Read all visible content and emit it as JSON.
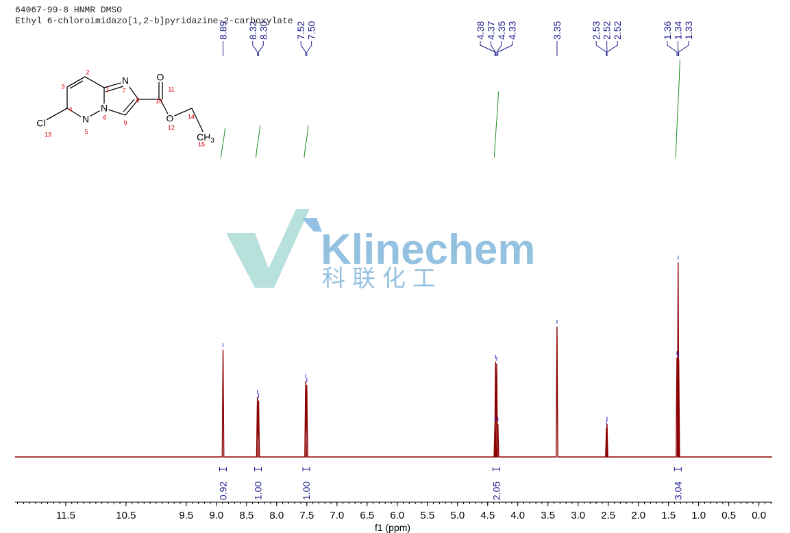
{
  "title_lines": [
    "64067-99-8 HNMR DMSO",
    "Ethyl 6-chloroimidazo[1,2-b]pyridazine-2-carboxylate"
  ],
  "watermark": {
    "brand": "Klinechem",
    "chinese": "科联化工"
  },
  "structure": {
    "symbols": [
      "N",
      "N",
      "N",
      "O",
      "O",
      "Cl"
    ],
    "methyl": {
      "text": "CH",
      "sub": "3"
    },
    "atom_numbers": [
      1,
      2,
      3,
      4,
      5,
      6,
      7,
      8,
      9,
      10,
      11,
      12,
      13,
      14,
      15
    ]
  },
  "chart_data": {
    "type": "spectrum",
    "x_label": "f1 (ppm)",
    "xlim": [
      12.34,
      -0.22
    ],
    "xticks": [
      11.5,
      10.5,
      9.5,
      {
        "value": 9,
        "label": "9.0"
      },
      8.5,
      {
        "value": 8,
        "label": "8.0"
      },
      7.5,
      {
        "value": 7,
        "label": "7.0"
      },
      6.5,
      {
        "value": 6,
        "label": "6.0"
      },
      5.5,
      {
        "value": 5,
        "label": "5.0"
      },
      4.5,
      {
        "value": 4,
        "label": "4.0"
      },
      3.5,
      {
        "value": 3,
        "label": "3.0"
      },
      2.5,
      {
        "value": 2,
        "label": "2.0"
      },
      1.5,
      {
        "value": 1,
        "label": "1.0"
      },
      0.5,
      {
        "value": 0,
        "label": "0.0"
      }
    ],
    "ylim": [
      0,
      100
    ],
    "color": "#8b0000",
    "x": [
      8.89,
      8.32,
      8.3,
      7.52,
      7.5,
      4.38,
      4.37,
      4.35,
      4.33,
      3.35,
      2.53,
      2.52,
      2.52,
      1.36,
      1.34,
      1.33
    ],
    "x_labels": [
      "8.89",
      "8.32",
      "8.30",
      "7.52",
      "7.50",
      "4.38",
      "4.37",
      "4.35",
      "4.33",
      "3.35",
      "2.53",
      "2.52",
      "2.52",
      "1.36",
      "1.34",
      "1.33"
    ],
    "values": [
      55,
      31,
      29,
      39,
      37,
      17,
      49,
      48,
      17,
      67,
      15,
      17,
      17,
      51,
      100,
      50
    ],
    "integrals": {
      "x": [
        8.89,
        8.31,
        7.51,
        4.355,
        1.345
      ],
      "values": [
        0.92,
        1,
        1,
        2.05,
        3.04
      ],
      "value_labels": [
        "0.92",
        "1.00",
        "1.00",
        "2.05",
        "3.04"
      ]
    }
  }
}
